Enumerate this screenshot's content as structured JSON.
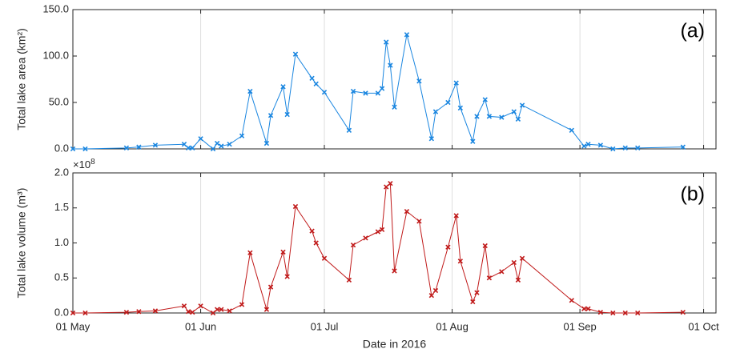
{
  "chart_data": [
    {
      "type": "line",
      "ylabel": "Total lake area (km²)",
      "panel_label": "(a)",
      "color": "#1a86e0",
      "grid": true,
      "x": [
        "2016-05-01",
        "2016-05-04",
        "2016-05-14",
        "2016-05-17",
        "2016-05-21",
        "2016-05-28",
        "2016-05-29",
        "2016-05-30",
        "2016-06-01",
        "2016-06-04",
        "2016-06-05",
        "2016-06-06",
        "2016-06-08",
        "2016-06-11",
        "2016-06-13",
        "2016-06-17",
        "2016-06-18",
        "2016-06-21",
        "2016-06-22",
        "2016-06-24",
        "2016-06-28",
        "2016-06-29",
        "2016-07-01",
        "2016-07-07",
        "2016-07-08",
        "2016-07-11",
        "2016-07-14",
        "2016-07-15",
        "2016-07-16",
        "2016-07-17",
        "2016-07-18",
        "2016-07-21",
        "2016-07-24",
        "2016-07-27",
        "2016-07-28",
        "2016-07-31",
        "2016-08-02",
        "2016-08-03",
        "2016-08-06",
        "2016-08-07",
        "2016-08-09",
        "2016-08-10",
        "2016-08-13",
        "2016-08-16",
        "2016-08-17",
        "2016-08-18",
        "2016-08-30",
        "2016-09-02",
        "2016-09-03",
        "2016-09-06",
        "2016-09-09",
        "2016-09-12",
        "2016-09-15",
        "2016-09-26"
      ],
      "values": [
        0,
        0,
        1,
        2,
        4,
        5,
        1,
        1,
        11,
        0,
        6,
        3,
        5,
        14,
        62,
        6,
        36,
        67,
        37,
        102,
        76,
        70,
        61,
        20,
        62,
        60,
        60,
        65,
        115,
        90,
        45,
        123,
        73,
        11,
        40,
        50,
        71,
        44,
        8,
        35,
        53,
        35,
        34,
        40,
        32,
        47,
        20,
        3,
        5,
        4,
        0,
        1,
        1,
        2
      ],
      "xlim": [
        "2016-05-01",
        "2016-10-04"
      ],
      "xticks": [
        "2016-05-01",
        "2016-06-01",
        "2016-07-01",
        "2016-08-01",
        "2016-09-01",
        "2016-10-01"
      ],
      "ylim": [
        0,
        150
      ],
      "yticks": [
        {
          "value": 0,
          "label": "0.0"
        },
        {
          "value": 50,
          "label": "50.0"
        },
        {
          "value": 100,
          "label": "100.0"
        },
        {
          "value": 150,
          "label": "150.0"
        }
      ]
    },
    {
      "type": "line",
      "ylabel": "Total lake volume (m³)",
      "xlabel": "Date in 2016",
      "panel_label": "(b)",
      "color": "#c01a1a",
      "grid": true,
      "y_multiplier_base": "×10",
      "y_multiplier_exponent": "8",
      "x": [
        "2016-05-01",
        "2016-05-04",
        "2016-05-14",
        "2016-05-17",
        "2016-05-21",
        "2016-05-28",
        "2016-05-29",
        "2016-05-30",
        "2016-06-01",
        "2016-06-04",
        "2016-06-05",
        "2016-06-06",
        "2016-06-08",
        "2016-06-11",
        "2016-06-13",
        "2016-06-17",
        "2016-06-18",
        "2016-06-21",
        "2016-06-22",
        "2016-06-24",
        "2016-06-28",
        "2016-06-29",
        "2016-07-01",
        "2016-07-07",
        "2016-07-08",
        "2016-07-11",
        "2016-07-14",
        "2016-07-15",
        "2016-07-16",
        "2016-07-17",
        "2016-07-18",
        "2016-07-21",
        "2016-07-24",
        "2016-07-27",
        "2016-07-28",
        "2016-07-31",
        "2016-08-02",
        "2016-08-03",
        "2016-08-06",
        "2016-08-07",
        "2016-08-09",
        "2016-08-10",
        "2016-08-13",
        "2016-08-16",
        "2016-08-17",
        "2016-08-18",
        "2016-08-30",
        "2016-09-02",
        "2016-09-03",
        "2016-09-06",
        "2016-09-09",
        "2016-09-12",
        "2016-09-15",
        "2016-09-26"
      ],
      "values": [
        0,
        0,
        0.01,
        0.02,
        0.03,
        0.1,
        0.02,
        0.01,
        0.1,
        0,
        0.05,
        0.05,
        0.03,
        0.12,
        0.86,
        0.05,
        0.37,
        0.87,
        0.52,
        1.52,
        1.17,
        1.0,
        0.78,
        0.47,
        0.97,
        1.07,
        1.16,
        1.19,
        1.8,
        1.85,
        0.6,
        1.45,
        1.31,
        0.25,
        0.32,
        0.94,
        1.39,
        0.74,
        0.16,
        0.29,
        0.96,
        0.5,
        0.59,
        0.72,
        0.47,
        0.78,
        0.18,
        0.06,
        0.06,
        0.01,
        0,
        0,
        0,
        0.01
      ],
      "xlim": [
        "2016-05-01",
        "2016-10-04"
      ],
      "xticks": [
        {
          "value": "2016-05-01",
          "label": "01 May"
        },
        {
          "value": "2016-06-01",
          "label": "01 Jun"
        },
        {
          "value": "2016-07-01",
          "label": "01 Jul"
        },
        {
          "value": "2016-08-01",
          "label": "01 Aug"
        },
        {
          "value": "2016-09-01",
          "label": "01 Sep"
        },
        {
          "value": "2016-10-01",
          "label": "01 Oct"
        }
      ],
      "ylim": [
        0,
        2
      ],
      "yticks": [
        {
          "value": 0,
          "label": "0.0"
        },
        0.5,
        {
          "value": 1,
          "label": "1.0"
        },
        1.5,
        {
          "value": 2,
          "label": "2.0"
        }
      ]
    }
  ]
}
